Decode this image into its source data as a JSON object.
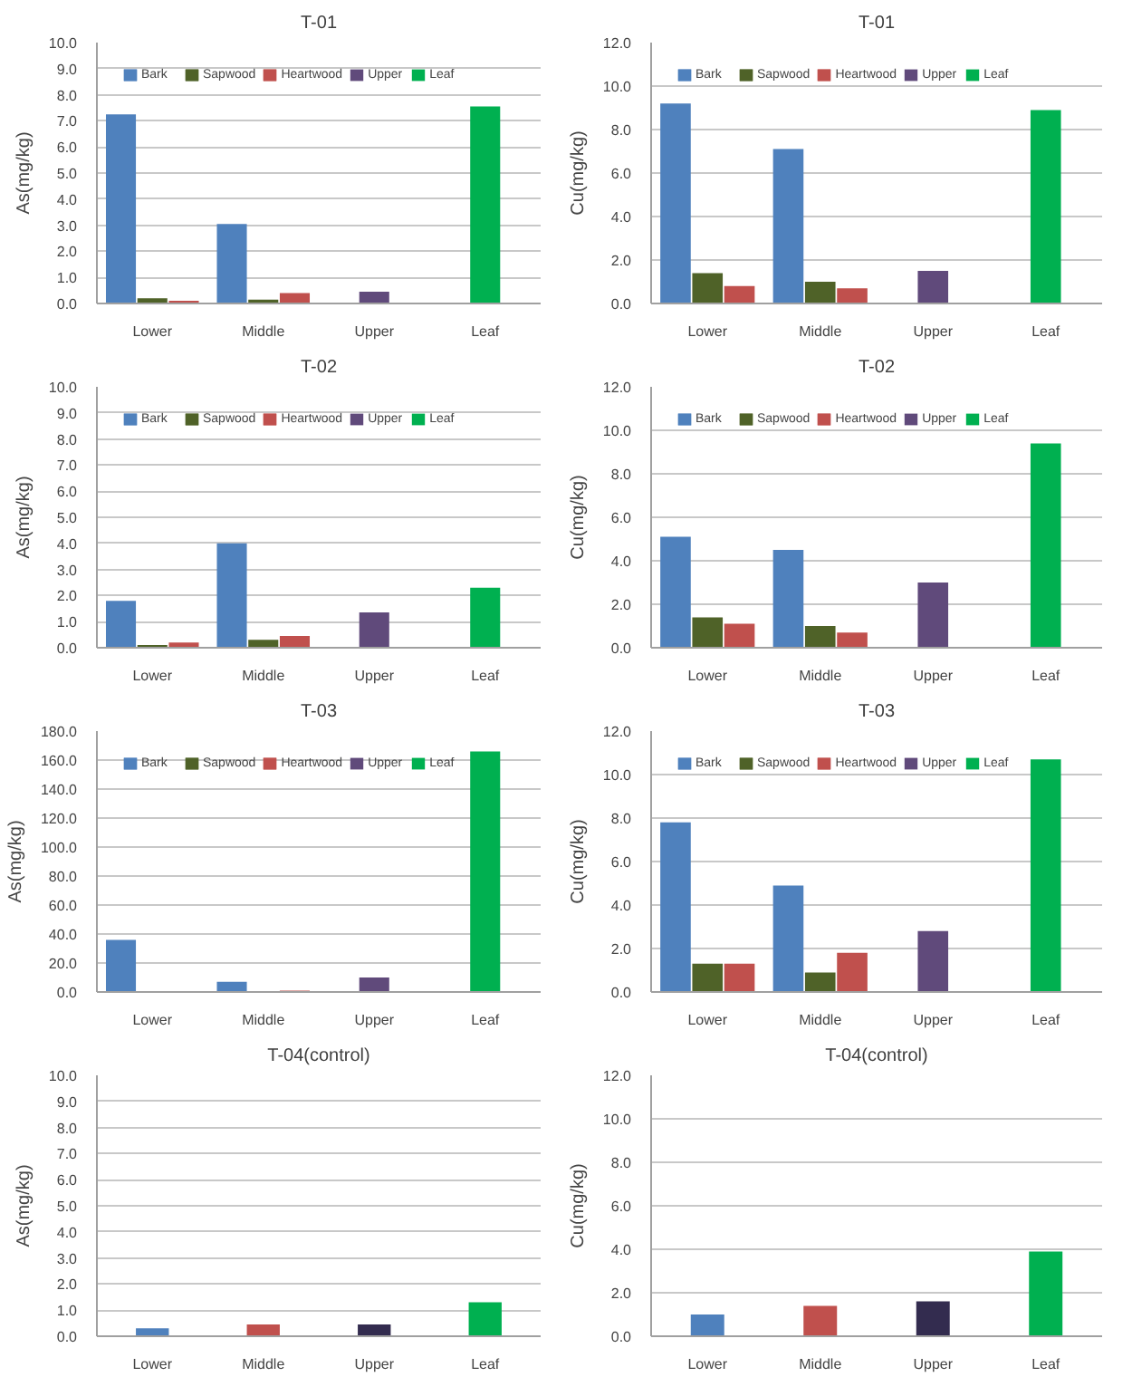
{
  "chart_data": [
    {
      "type": "bar",
      "title": "T-01",
      "ylabel": "As(mg/kg)",
      "categories": [
        "Lower",
        "Middle",
        "Upper",
        "Leaf"
      ],
      "ylim": [
        0,
        10
      ],
      "yticks": [
        {
          "value": 0,
          "label": "0.0"
        },
        {
          "value": 1,
          "label": "1.0"
        },
        {
          "value": 2,
          "label": "2.0"
        },
        {
          "value": 3,
          "label": "3.0"
        },
        {
          "value": 4,
          "label": "4.0"
        },
        {
          "value": 5,
          "label": "5.0"
        },
        {
          "value": 6,
          "label": "6.0"
        },
        {
          "value": 7,
          "label": "7.0"
        },
        {
          "value": 8,
          "label": "8.0"
        },
        {
          "value": 9,
          "label": "9.0"
        },
        {
          "value": 10,
          "label": "10.0"
        }
      ],
      "grid": "y",
      "legend": "top",
      "series": [
        {
          "name": "Bark",
          "color": "#4f81bd",
          "values": [
            7.25,
            3.05,
            null,
            null
          ]
        },
        {
          "name": "Sapwood",
          "color": "#4f6228",
          "values": [
            0.2,
            0.15,
            null,
            null
          ]
        },
        {
          "name": "Heartwood",
          "color": "#c0504d",
          "values": [
            0.1,
            0.4,
            null,
            null
          ]
        },
        {
          "name": "Upper",
          "color": "#604a7b",
          "values": [
            null,
            null,
            0.45,
            null
          ]
        },
        {
          "name": "Leaf",
          "color": "#00b050",
          "values": [
            null,
            null,
            null,
            7.55
          ]
        }
      ]
    },
    {
      "type": "bar",
      "title": "T-01",
      "ylabel": "Cu(mg/kg)",
      "categories": [
        "Lower",
        "Middle",
        "Upper",
        "Leaf"
      ],
      "ylim": [
        0,
        12
      ],
      "yticks": [
        {
          "value": 0,
          "label": "0.0"
        },
        {
          "value": 2,
          "label": "2.0"
        },
        {
          "value": 4,
          "label": "4.0"
        },
        {
          "value": 6,
          "label": "6.0"
        },
        {
          "value": 8,
          "label": "8.0"
        },
        {
          "value": 10,
          "label": "10.0"
        },
        {
          "value": 12,
          "label": "12.0"
        }
      ],
      "grid": "y",
      "legend": "top",
      "series": [
        {
          "name": "Bark",
          "color": "#4f81bd",
          "values": [
            9.2,
            7.1,
            null,
            null
          ]
        },
        {
          "name": "Sapwood",
          "color": "#4f6228",
          "values": [
            1.4,
            1.0,
            null,
            null
          ]
        },
        {
          "name": "Heartwood",
          "color": "#c0504d",
          "values": [
            0.8,
            0.7,
            null,
            null
          ]
        },
        {
          "name": "Upper",
          "color": "#604a7b",
          "values": [
            null,
            null,
            1.5,
            null
          ]
        },
        {
          "name": "Leaf",
          "color": "#00b050",
          "values": [
            null,
            null,
            null,
            8.9
          ]
        }
      ]
    },
    {
      "type": "bar",
      "title": "T-02",
      "ylabel": "As(mg/kg)",
      "categories": [
        "Lower",
        "Middle",
        "Upper",
        "Leaf"
      ],
      "ylim": [
        0,
        10
      ],
      "yticks": [
        {
          "value": 0,
          "label": "0.0"
        },
        {
          "value": 1,
          "label": "1.0"
        },
        {
          "value": 2,
          "label": "2.0"
        },
        {
          "value": 3,
          "label": "3.0"
        },
        {
          "value": 4,
          "label": "4.0"
        },
        {
          "value": 5,
          "label": "5.0"
        },
        {
          "value": 6,
          "label": "6.0"
        },
        {
          "value": 7,
          "label": "7.0"
        },
        {
          "value": 8,
          "label": "8.0"
        },
        {
          "value": 9,
          "label": "9.0"
        },
        {
          "value": 10,
          "label": "10.0"
        }
      ],
      "grid": "y",
      "legend": "top",
      "series": [
        {
          "name": "Bark",
          "color": "#4f81bd",
          "values": [
            1.8,
            4.0,
            null,
            null
          ]
        },
        {
          "name": "Sapwood",
          "color": "#4f6228",
          "values": [
            0.1,
            0.3,
            null,
            null
          ]
        },
        {
          "name": "Heartwood",
          "color": "#c0504d",
          "values": [
            0.2,
            0.45,
            null,
            null
          ]
        },
        {
          "name": "Upper",
          "color": "#604a7b",
          "values": [
            null,
            null,
            1.35,
            null
          ]
        },
        {
          "name": "Leaf",
          "color": "#00b050",
          "values": [
            null,
            null,
            null,
            2.3
          ]
        }
      ]
    },
    {
      "type": "bar",
      "title": "T-02",
      "ylabel": "Cu(mg/kg)",
      "categories": [
        "Lower",
        "Middle",
        "Upper",
        "Leaf"
      ],
      "ylim": [
        0,
        12
      ],
      "yticks": [
        {
          "value": 0,
          "label": "0.0"
        },
        {
          "value": 2,
          "label": "2.0"
        },
        {
          "value": 4,
          "label": "4.0"
        },
        {
          "value": 6,
          "label": "6.0"
        },
        {
          "value": 8,
          "label": "8.0"
        },
        {
          "value": 10,
          "label": "10.0"
        },
        {
          "value": 12,
          "label": "12.0"
        }
      ],
      "grid": "y",
      "legend": "top",
      "series": [
        {
          "name": "Bark",
          "color": "#4f81bd",
          "values": [
            5.1,
            4.5,
            null,
            null
          ]
        },
        {
          "name": "Sapwood",
          "color": "#4f6228",
          "values": [
            1.4,
            1.0,
            null,
            null
          ]
        },
        {
          "name": "Heartwood",
          "color": "#c0504d",
          "values": [
            1.1,
            0.7,
            null,
            null
          ]
        },
        {
          "name": "Upper",
          "color": "#604a7b",
          "values": [
            null,
            null,
            3.0,
            null
          ]
        },
        {
          "name": "Leaf",
          "color": "#00b050",
          "values": [
            null,
            null,
            null,
            9.4
          ]
        }
      ]
    },
    {
      "type": "bar",
      "title": "T-03",
      "ylabel": "As(mg/kg)",
      "categories": [
        "Lower",
        "Middle",
        "Upper",
        "Leaf"
      ],
      "ylim": [
        0,
        180
      ],
      "yticks": [
        {
          "value": 0,
          "label": "0.0"
        },
        {
          "value": 20,
          "label": "20.0"
        },
        {
          "value": 40,
          "label": "40.0"
        },
        {
          "value": 60,
          "label": "60.0"
        },
        {
          "value": 80,
          "label": "80.0"
        },
        {
          "value": 100,
          "label": "100.0"
        },
        {
          "value": 120,
          "label": "120.0"
        },
        {
          "value": 140,
          "label": "140.0"
        },
        {
          "value": 160,
          "label": "160.0"
        },
        {
          "value": 180,
          "label": "180.0"
        }
      ],
      "grid": "y",
      "legend": "top",
      "series": [
        {
          "name": "Bark",
          "color": "#4f81bd",
          "values": [
            36,
            7,
            null,
            null
          ]
        },
        {
          "name": "Sapwood",
          "color": "#4f6228",
          "values": [
            0,
            0,
            null,
            null
          ]
        },
        {
          "name": "Heartwood",
          "color": "#c0504d",
          "values": [
            0,
            1,
            null,
            null
          ]
        },
        {
          "name": "Upper",
          "color": "#604a7b",
          "values": [
            null,
            null,
            10,
            null
          ]
        },
        {
          "name": "Leaf",
          "color": "#00b050",
          "values": [
            null,
            null,
            null,
            166
          ]
        }
      ]
    },
    {
      "type": "bar",
      "title": "T-03",
      "ylabel": "Cu(mg/kg)",
      "categories": [
        "Lower",
        "Middle",
        "Upper",
        "Leaf"
      ],
      "ylim": [
        0,
        12
      ],
      "yticks": [
        {
          "value": 0,
          "label": "0.0"
        },
        {
          "value": 2,
          "label": "2.0"
        },
        {
          "value": 4,
          "label": "4.0"
        },
        {
          "value": 6,
          "label": "6.0"
        },
        {
          "value": 8,
          "label": "8.0"
        },
        {
          "value": 10,
          "label": "10.0"
        },
        {
          "value": 12,
          "label": "12.0"
        }
      ],
      "grid": "y",
      "legend": "top",
      "series": [
        {
          "name": "Bark",
          "color": "#4f81bd",
          "values": [
            7.8,
            4.9,
            null,
            null
          ]
        },
        {
          "name": "Sapwood",
          "color": "#4f6228",
          "values": [
            1.3,
            0.9,
            null,
            null
          ]
        },
        {
          "name": "Heartwood",
          "color": "#c0504d",
          "values": [
            1.3,
            1.8,
            null,
            null
          ]
        },
        {
          "name": "Upper",
          "color": "#604a7b",
          "values": [
            null,
            null,
            2.8,
            null
          ]
        },
        {
          "name": "Leaf",
          "color": "#00b050",
          "values": [
            null,
            null,
            null,
            10.7
          ]
        }
      ]
    },
    {
      "type": "bar",
      "title": "T-04(control)",
      "ylabel": "As(mg/kg)",
      "categories": [
        "Lower",
        "Middle",
        "Upper",
        "Leaf"
      ],
      "ylim": [
        0,
        10
      ],
      "yticks": [
        {
          "value": 0,
          "label": "0.0"
        },
        {
          "value": 1,
          "label": "1.0"
        },
        {
          "value": 2,
          "label": "2.0"
        },
        {
          "value": 3,
          "label": "3.0"
        },
        {
          "value": 4,
          "label": "4.0"
        },
        {
          "value": 5,
          "label": "5.0"
        },
        {
          "value": 6,
          "label": "6.0"
        },
        {
          "value": 7,
          "label": "7.0"
        },
        {
          "value": 8,
          "label": "8.0"
        },
        {
          "value": 9,
          "label": "9.0"
        },
        {
          "value": 10,
          "label": "10.0"
        }
      ],
      "grid": "y",
      "values": [
        0.3,
        0.45,
        0.45,
        1.3
      ],
      "colors": [
        "#4f81bd",
        "#c0504d",
        "#332c4f",
        "#00b050"
      ]
    },
    {
      "type": "bar",
      "title": "T-04(control)",
      "ylabel": "Cu(mg/kg)",
      "categories": [
        "Lower",
        "Middle",
        "Upper",
        "Leaf"
      ],
      "ylim": [
        0,
        12
      ],
      "yticks": [
        {
          "value": 0,
          "label": "0.0"
        },
        {
          "value": 2,
          "label": "2.0"
        },
        {
          "value": 4,
          "label": "4.0"
        },
        {
          "value": 6,
          "label": "6.0"
        },
        {
          "value": 8,
          "label": "8.0"
        },
        {
          "value": 10,
          "label": "10.0"
        },
        {
          "value": 12,
          "label": "12.0"
        }
      ],
      "grid": "y",
      "values": [
        1.0,
        1.4,
        1.6,
        3.9
      ],
      "colors": [
        "#4f81bd",
        "#c0504d",
        "#332c4f",
        "#00b050"
      ]
    }
  ]
}
